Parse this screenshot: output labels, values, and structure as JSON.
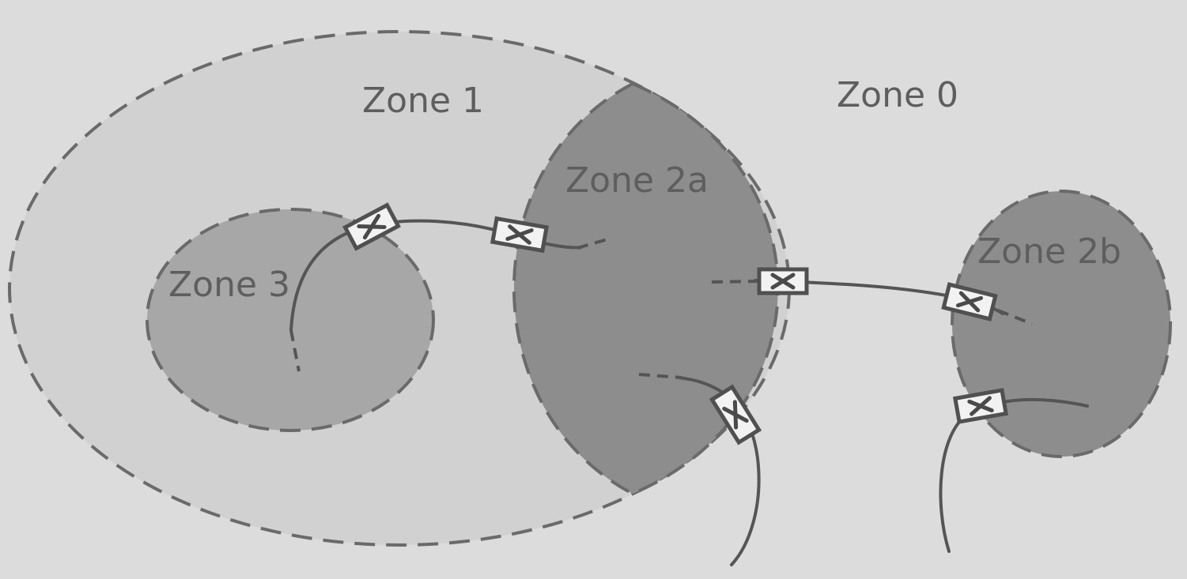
{
  "diagram": {
    "colors": {
      "background": "#dcdcdc",
      "zone1_fill": "#d1d1d1",
      "zone3_fill": "#a7a7a7",
      "zone2_fill": "#8d8d8d",
      "outline": "#6a6a6a",
      "cable": "#555555",
      "label": "#5e5e5e"
    },
    "zones": [
      {
        "id": "zone0",
        "label": "Zone 0"
      },
      {
        "id": "zone1",
        "label": "Zone 1"
      },
      {
        "id": "zone2a",
        "label": "Zone 2a"
      },
      {
        "id": "zone2b",
        "label": "Zone 2b"
      },
      {
        "id": "zone3",
        "label": "Zone 3"
      }
    ],
    "glands": [
      {
        "id": "gland-1",
        "icon": "cable-gland-icon"
      },
      {
        "id": "gland-2",
        "icon": "cable-gland-icon"
      },
      {
        "id": "gland-3",
        "icon": "cable-gland-icon"
      },
      {
        "id": "gland-4",
        "icon": "cable-gland-icon"
      },
      {
        "id": "gland-5",
        "icon": "cable-gland-icon"
      },
      {
        "id": "gland-6",
        "icon": "cable-gland-icon"
      }
    ]
  }
}
